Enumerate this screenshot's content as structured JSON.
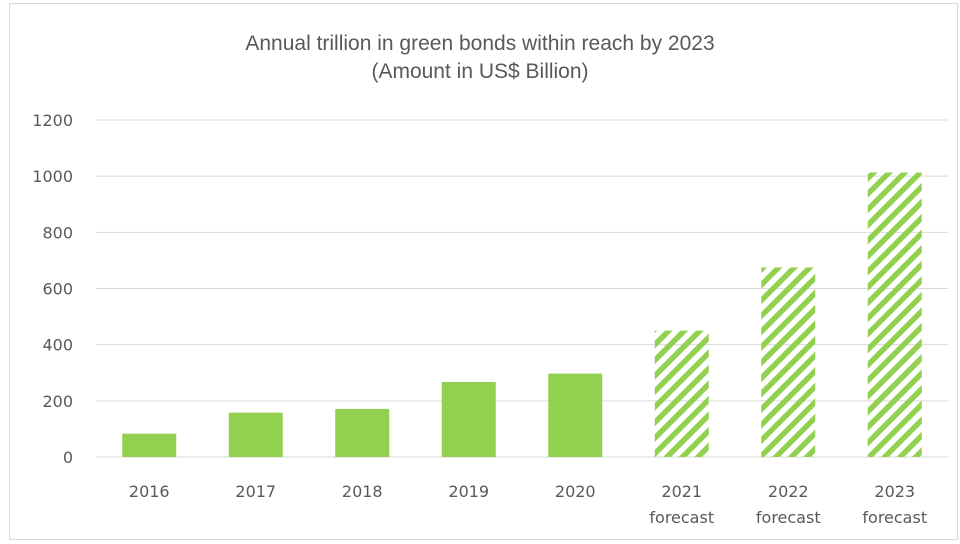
{
  "chart_data": {
    "type": "bar",
    "title": "Annual trillion in green bonds within reach by 2023",
    "subtitle": "(Amount in US$ Billion)",
    "categories": [
      [
        "2016"
      ],
      [
        "2017"
      ],
      [
        "2018"
      ],
      [
        "2019"
      ],
      [
        "2020"
      ],
      [
        "2021",
        "forecast"
      ],
      [
        "2022",
        "forecast"
      ],
      [
        "2023",
        "forecast"
      ]
    ],
    "values": [
      83,
      158,
      171,
      267,
      297,
      450,
      675,
      1013
    ],
    "forecast": [
      false,
      false,
      false,
      false,
      false,
      true,
      true,
      true
    ],
    "ylim": [
      0,
      1200
    ],
    "yticks": [
      "0",
      "200",
      "400",
      "600",
      "800",
      "1000",
      "1200"
    ],
    "grid": true,
    "colors": {
      "bar": "#92d050",
      "grid": "#d9d9d9",
      "text": "#595959"
    }
  }
}
